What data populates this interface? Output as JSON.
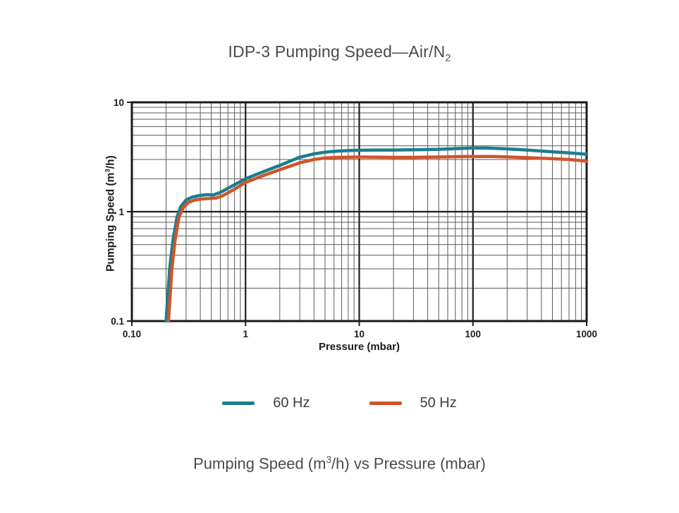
{
  "title": {
    "text": "IDP-3 Pumping Speed—Air/N",
    "subscript": "2"
  },
  "caption": {
    "pre": "Pumping Speed (m",
    "sup": "3",
    "post": "/h) vs Pressure (mbar)"
  },
  "chart_data": {
    "type": "line",
    "x_scale": "log",
    "y_scale": "log",
    "xlim": [
      0.1,
      1000
    ],
    "ylim": [
      0.1,
      10
    ],
    "xlabel": "Pressure (mbar)",
    "ylabel": {
      "pre": "Pumping Speed (m",
      "sup": "3",
      "post": "/h)"
    },
    "x_ticks": [
      {
        "value": 0.1,
        "label": "0.10"
      },
      {
        "value": 1,
        "label": "1"
      },
      {
        "value": 10,
        "label": "10"
      },
      {
        "value": 100,
        "label": "100"
      },
      {
        "value": 1000,
        "label": "1000"
      }
    ],
    "y_ticks": [
      {
        "value": 10,
        "label": "10"
      },
      {
        "value": 1,
        "label": "1"
      },
      {
        "value": 0.1,
        "label": "0.1"
      }
    ],
    "grid": {
      "minor_color": "#5a5a5a",
      "major_color": "#1f1f1f",
      "frame_color": "#1a1a1a"
    },
    "legend_position": "bottom",
    "series": [
      {
        "name": "60 Hz",
        "color": "#1b7f8e",
        "points": [
          [
            0.2,
            0.1
          ],
          [
            0.215,
            0.3
          ],
          [
            0.23,
            0.55
          ],
          [
            0.25,
            0.9
          ],
          [
            0.27,
            1.12
          ],
          [
            0.3,
            1.28
          ],
          [
            0.34,
            1.36
          ],
          [
            0.4,
            1.41
          ],
          [
            0.46,
            1.43
          ],
          [
            0.52,
            1.42
          ],
          [
            0.6,
            1.5
          ],
          [
            0.75,
            1.7
          ],
          [
            1.0,
            2.0
          ],
          [
            1.4,
            2.3
          ],
          [
            2.0,
            2.65
          ],
          [
            3.0,
            3.15
          ],
          [
            4.0,
            3.38
          ],
          [
            5.0,
            3.5
          ],
          [
            6.5,
            3.58
          ],
          [
            8.0,
            3.62
          ],
          [
            10,
            3.65
          ],
          [
            15,
            3.66
          ],
          [
            20,
            3.66
          ],
          [
            30,
            3.68
          ],
          [
            50,
            3.72
          ],
          [
            70,
            3.77
          ],
          [
            100,
            3.82
          ],
          [
            130,
            3.82
          ],
          [
            180,
            3.77
          ],
          [
            250,
            3.7
          ],
          [
            350,
            3.62
          ],
          [
            500,
            3.53
          ],
          [
            700,
            3.45
          ],
          [
            1000,
            3.35
          ]
        ]
      },
      {
        "name": "50 Hz",
        "color": "#d0552b",
        "points": [
          [
            0.21,
            0.1
          ],
          [
            0.225,
            0.3
          ],
          [
            0.24,
            0.55
          ],
          [
            0.26,
            0.9
          ],
          [
            0.285,
            1.1
          ],
          [
            0.315,
            1.22
          ],
          [
            0.36,
            1.28
          ],
          [
            0.42,
            1.31
          ],
          [
            0.48,
            1.32
          ],
          [
            0.55,
            1.33
          ],
          [
            0.63,
            1.4
          ],
          [
            0.78,
            1.58
          ],
          [
            1.0,
            1.85
          ],
          [
            1.4,
            2.12
          ],
          [
            2.0,
            2.42
          ],
          [
            3.0,
            2.8
          ],
          [
            4.0,
            3.0
          ],
          [
            5.0,
            3.1
          ],
          [
            6.5,
            3.14
          ],
          [
            8.0,
            3.15
          ],
          [
            10,
            3.16
          ],
          [
            15,
            3.15
          ],
          [
            20,
            3.14
          ],
          [
            30,
            3.14
          ],
          [
            50,
            3.16
          ],
          [
            80,
            3.19
          ],
          [
            100,
            3.2
          ],
          [
            150,
            3.2
          ],
          [
            200,
            3.17
          ],
          [
            300,
            3.12
          ],
          [
            500,
            3.05
          ],
          [
            700,
            3.0
          ],
          [
            1000,
            2.9
          ]
        ]
      }
    ]
  }
}
